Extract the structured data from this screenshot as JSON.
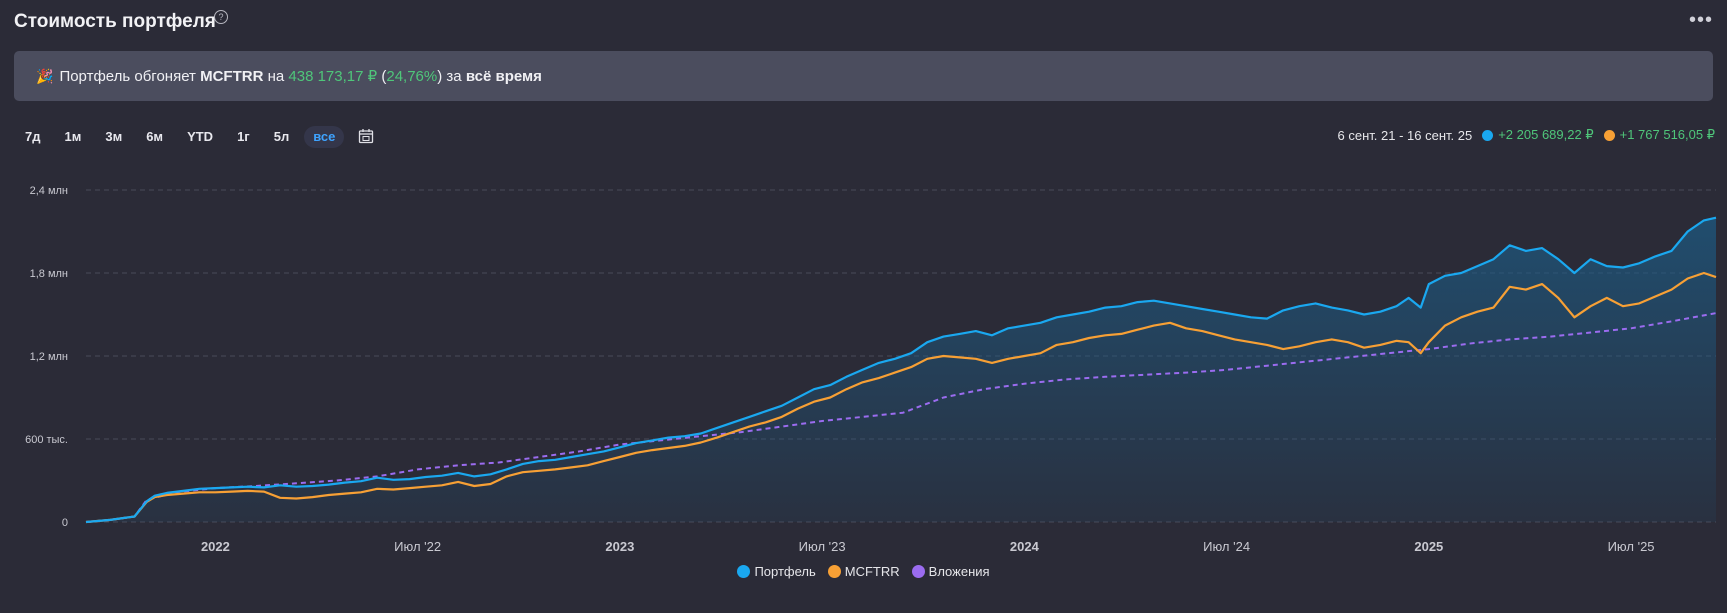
{
  "header": {
    "title": "Стоимость портфеля",
    "help": "?",
    "menu": "•••"
  },
  "banner": {
    "text_pre": "Портфель обгоняет",
    "benchmark": "MCFTRR",
    "text_on": "на",
    "diff_value": "438 173,17 ₽",
    "diff_pct_open": "(",
    "diff_pct": "24,76%",
    "diff_pct_close": ")",
    "text_for": "за",
    "period": "всё время"
  },
  "periods": [
    "7д",
    "1м",
    "3м",
    "6м",
    "YTD",
    "1г",
    "5л",
    "все"
  ],
  "active_period": "все",
  "range": {
    "dates": "6 сент. 21 - 16 сент. 25",
    "portfolio_change": "+2 205 689,22 ₽",
    "benchmark_change": "+1 767 516,05 ₽"
  },
  "colors": {
    "portfolio": "#1aa8f0",
    "benchmark": "#f7a035",
    "invested": "#9b6cf0",
    "grid": "#4a4b5a",
    "axis_text": "#c9c9d1"
  },
  "legend": [
    "Портфель",
    "MCFTRR",
    "Вложения"
  ],
  "chart_data": {
    "type": "line",
    "y_ticks": [
      {
        "v": 0,
        "label": "0"
      },
      {
        "v": 600000,
        "label": "600 тыс."
      },
      {
        "v": 1200000,
        "label": "1,2 млн"
      },
      {
        "v": 1800000,
        "label": "1,8 млн"
      },
      {
        "v": 2400000,
        "label": "2,4 млн"
      }
    ],
    "ylim": [
      0,
      2400000
    ],
    "xlim": [
      2021.68,
      2025.71
    ],
    "x_ticks": [
      {
        "v": 2022.0,
        "label": "2022",
        "bold": true
      },
      {
        "v": 2022.5,
        "label": "Июл '22",
        "bold": false
      },
      {
        "v": 2023.0,
        "label": "2023",
        "bold": true
      },
      {
        "v": 2023.5,
        "label": "Июл '23",
        "bold": false
      },
      {
        "v": 2024.0,
        "label": "2024",
        "bold": true
      },
      {
        "v": 2024.5,
        "label": "Июл '24",
        "bold": false
      },
      {
        "v": 2025.0,
        "label": "2025",
        "bold": true
      },
      {
        "v": 2025.5,
        "label": "Июл '25",
        "bold": false
      }
    ],
    "series": [
      {
        "name": "Портфель",
        "x": [
          2021.68,
          2021.74,
          2021.8,
          2021.83,
          2021.85,
          2021.88,
          2021.92,
          2021.96,
          2022.0,
          2022.04,
          2022.08,
          2022.12,
          2022.16,
          2022.2,
          2022.24,
          2022.28,
          2022.32,
          2022.36,
          2022.4,
          2022.44,
          2022.48,
          2022.52,
          2022.56,
          2022.6,
          2022.64,
          2022.68,
          2022.72,
          2022.76,
          2022.8,
          2022.84,
          2022.88,
          2022.92,
          2022.96,
          2023.0,
          2023.04,
          2023.08,
          2023.12,
          2023.16,
          2023.2,
          2023.24,
          2023.28,
          2023.32,
          2023.36,
          2023.4,
          2023.44,
          2023.48,
          2023.52,
          2023.56,
          2023.6,
          2023.64,
          2023.68,
          2023.72,
          2023.76,
          2023.8,
          2023.84,
          2023.88,
          2023.92,
          2023.96,
          2024.0,
          2024.04,
          2024.08,
          2024.12,
          2024.16,
          2024.2,
          2024.24,
          2024.28,
          2024.32,
          2024.36,
          2024.4,
          2024.44,
          2024.48,
          2024.52,
          2024.56,
          2024.6,
          2024.64,
          2024.68,
          2024.72,
          2024.76,
          2024.8,
          2024.84,
          2024.88,
          2024.92,
          2024.95,
          2024.98,
          2025.0,
          2025.04,
          2025.08,
          2025.12,
          2025.16,
          2025.2,
          2025.24,
          2025.28,
          2025.32,
          2025.36,
          2025.4,
          2025.44,
          2025.48,
          2025.52,
          2025.56,
          2025.6,
          2025.64,
          2025.68,
          2025.71
        ],
        "y": [
          0,
          15000,
          40000,
          150000,
          190000,
          210000,
          225000,
          240000,
          245000,
          250000,
          255000,
          250000,
          265000,
          255000,
          260000,
          270000,
          285000,
          295000,
          320000,
          305000,
          310000,
          325000,
          335000,
          355000,
          330000,
          345000,
          380000,
          420000,
          440000,
          450000,
          470000,
          490000,
          510000,
          540000,
          570000,
          590000,
          610000,
          620000,
          640000,
          680000,
          720000,
          760000,
          800000,
          840000,
          900000,
          960000,
          990000,
          1050000,
          1100000,
          1150000,
          1180000,
          1220000,
          1300000,
          1340000,
          1360000,
          1380000,
          1350000,
          1400000,
          1420000,
          1440000,
          1480000,
          1500000,
          1520000,
          1550000,
          1560000,
          1590000,
          1600000,
          1580000,
          1560000,
          1540000,
          1520000,
          1500000,
          1480000,
          1470000,
          1530000,
          1560000,
          1580000,
          1550000,
          1530000,
          1500000,
          1520000,
          1560000,
          1620000,
          1550000,
          1720000,
          1780000,
          1800000,
          1850000,
          1900000,
          2000000,
          1960000,
          1980000,
          1900000,
          1800000,
          1900000,
          1850000,
          1840000,
          1870000,
          1920000,
          1960000,
          2100000,
          2180000,
          2200000
        ]
      },
      {
        "name": "MCFTRR",
        "x": [
          2021.68,
          2021.74,
          2021.8,
          2021.83,
          2021.85,
          2021.88,
          2021.92,
          2021.96,
          2022.0,
          2022.04,
          2022.08,
          2022.12,
          2022.16,
          2022.2,
          2022.24,
          2022.28,
          2022.32,
          2022.36,
          2022.4,
          2022.44,
          2022.48,
          2022.52,
          2022.56,
          2022.6,
          2022.64,
          2022.68,
          2022.72,
          2022.76,
          2022.8,
          2022.84,
          2022.88,
          2022.92,
          2022.96,
          2023.0,
          2023.04,
          2023.08,
          2023.12,
          2023.16,
          2023.2,
          2023.24,
          2023.28,
          2023.32,
          2023.36,
          2023.4,
          2023.44,
          2023.48,
          2023.52,
          2023.56,
          2023.6,
          2023.64,
          2023.68,
          2023.72,
          2023.76,
          2023.8,
          2023.84,
          2023.88,
          2023.92,
          2023.96,
          2024.0,
          2024.04,
          2024.08,
          2024.12,
          2024.16,
          2024.2,
          2024.24,
          2024.28,
          2024.32,
          2024.36,
          2024.4,
          2024.44,
          2024.48,
          2024.52,
          2024.56,
          2024.6,
          2024.64,
          2024.68,
          2024.72,
          2024.76,
          2024.8,
          2024.84,
          2024.88,
          2024.92,
          2024.95,
          2024.98,
          2025.0,
          2025.04,
          2025.08,
          2025.12,
          2025.16,
          2025.2,
          2025.24,
          2025.28,
          2025.32,
          2025.36,
          2025.4,
          2025.44,
          2025.48,
          2025.52,
          2025.56,
          2025.6,
          2025.64,
          2025.68,
          2025.71
        ],
        "y": [
          0,
          15000,
          40000,
          145000,
          180000,
          195000,
          205000,
          215000,
          215000,
          220000,
          225000,
          220000,
          175000,
          170000,
          180000,
          195000,
          205000,
          215000,
          240000,
          235000,
          245000,
          255000,
          265000,
          290000,
          260000,
          275000,
          330000,
          360000,
          370000,
          380000,
          395000,
          410000,
          440000,
          470000,
          500000,
          520000,
          535000,
          550000,
          575000,
          610000,
          650000,
          690000,
          720000,
          760000,
          820000,
          870000,
          900000,
          960000,
          1010000,
          1040000,
          1080000,
          1120000,
          1180000,
          1200000,
          1190000,
          1180000,
          1150000,
          1180000,
          1200000,
          1220000,
          1280000,
          1300000,
          1330000,
          1350000,
          1360000,
          1390000,
          1420000,
          1440000,
          1400000,
          1380000,
          1350000,
          1320000,
          1300000,
          1280000,
          1250000,
          1270000,
          1300000,
          1320000,
          1300000,
          1260000,
          1280000,
          1310000,
          1300000,
          1220000,
          1300000,
          1420000,
          1480000,
          1520000,
          1550000,
          1700000,
          1680000,
          1720000,
          1620000,
          1480000,
          1560000,
          1620000,
          1560000,
          1580000,
          1630000,
          1680000,
          1760000,
          1800000,
          1770000
        ]
      },
      {
        "name": "Вложения",
        "x": [
          2021.68,
          2021.74,
          2021.8,
          2021.83,
          2021.9,
          2022.0,
          2022.1,
          2022.2,
          2022.3,
          2022.4,
          2022.5,
          2022.6,
          2022.7,
          2022.8,
          2022.9,
          2023.0,
          2023.1,
          2023.2,
          2023.3,
          2023.4,
          2023.5,
          2023.6,
          2023.7,
          2023.8,
          2023.9,
          2024.0,
          2024.1,
          2024.2,
          2024.3,
          2024.4,
          2024.5,
          2024.6,
          2024.7,
          2024.8,
          2024.9,
          2025.0,
          2025.1,
          2025.2,
          2025.3,
          2025.4,
          2025.5,
          2025.6,
          2025.71
        ],
        "y": [
          0,
          15000,
          40000,
          160000,
          215000,
          245000,
          260000,
          280000,
          300000,
          330000,
          380000,
          410000,
          430000,
          470000,
          510000,
          560000,
          590000,
          620000,
          650000,
          690000,
          730000,
          760000,
          790000,
          900000,
          960000,
          1000000,
          1030000,
          1050000,
          1065000,
          1080000,
          1100000,
          1130000,
          1160000,
          1190000,
          1220000,
          1250000,
          1290000,
          1320000,
          1340000,
          1370000,
          1400000,
          1450000,
          1510000
        ]
      }
    ]
  }
}
